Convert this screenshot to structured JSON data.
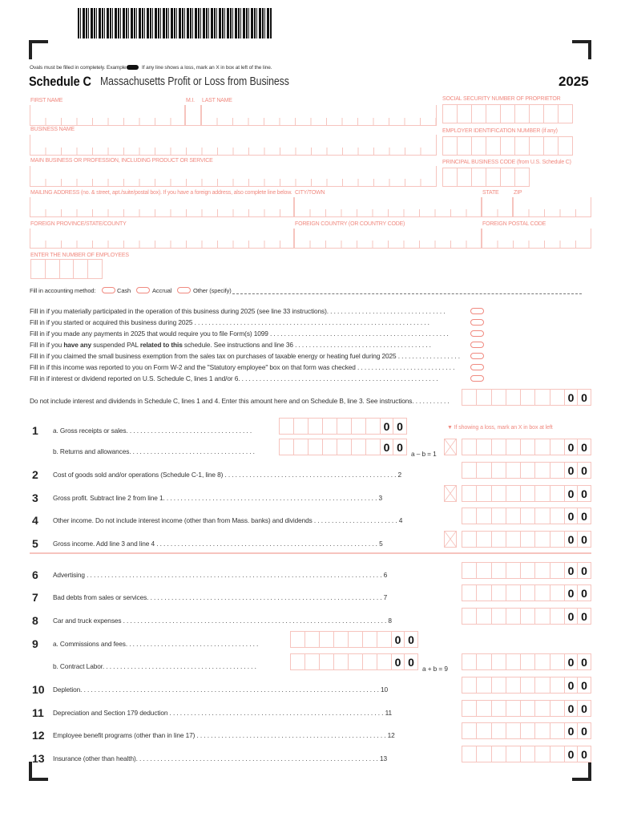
{
  "header": {
    "oval_note": "Ovals must be filled in completely. Example:",
    "loss_note": "If any line shows a loss, mark an X in box at left of the line.",
    "form_code": "Schedule C",
    "form_title": "Massachusetts Profit or Loss from Business",
    "year": "2025"
  },
  "fields": {
    "first_name": "FIRST NAME",
    "mi": "M.I.",
    "last_name": "LAST NAME",
    "ssn": "SOCIAL SECURITY NUMBER OF PROPRIETOR",
    "business_name": "BUSINESS NAME",
    "ein": "EMPLOYER IDENTIFICATION NUMBER (if any)",
    "main_business": "MAIN BUSINESS OR PROFESSION, INCLUDING PRODUCT OR SERVICE",
    "principal_code": "PRINCIPAL BUSINESS CODE (from U.S. Schedule C)",
    "mailing_address": "MAILING ADDRESS (no. & street, apt./suite/postal box). If you have a foreign address, also complete line below.",
    "city": "CITY/TOWN",
    "state": "STATE",
    "zip": "ZIP",
    "foreign_province": "FOREIGN PROVINCE/STATE/COUNTY",
    "foreign_country": "FOREIGN COUNTRY (OR COUNTRY CODE)",
    "foreign_postal": "FOREIGN POSTAL CODE",
    "employees": "ENTER THE NUMBER OF EMPLOYEES"
  },
  "accounting": {
    "label": "Fill in accounting method:",
    "cash": "Cash",
    "accrual": "Accrual",
    "other": "Other (specify)"
  },
  "fill_ins": [
    "Fill in if you materially participated in the operation of this business during 2025 (see line 33 instructions). . . . . . . . . . . . . . . . . . . . . . . . . . . . . . . . . .",
    "Fill in if you started or acquired this business during 2025 . . . . . . . . . . . . . . . . . . . . . . . . . . . . . . . . . . . . . . . . . . . . . . . . . . . . . . . . . . . . . . . . . . .",
    "Fill in if you made any payments in 2025 that would require you to file Form(s) 1099 . . . . . . . . . . . . . . . . . . . . . . . . . . . . . . . . . . . . . . . . . . . . . . . . . . .",
    [
      "Fill in if you ",
      "have any",
      " suspended PAL ",
      "related to this",
      " schedule. See instructions and line 36 . . . . . . . . . . . . . . . . . . . . . . . . . . . . . . . . . . . . . . ."
    ],
    "Fill in if you claimed the small business exemption from the sales tax on purchases of taxable energy or heating fuel during 2025 . . . . . . . . . . . . . . . . . .",
    "Fill in if this income was reported to you on Form W-2 and the \"Statutory employee\" box on that form was checked . . . . . . . . . . . . . . . . . . . . . . . . . . . .",
    "Fill in if interest or dividend reported on U.S. Schedule C, lines 1 and/or 6. . . . . . . . . . . . . . . . . . . . . . . . . . . . . . . . . . . . . . . . . . . . . . . . . . . . . . . . ."
  ],
  "interest_line": "Do not include interest and dividends in Schedule C, lines 1 and 4. Enter this amount here and on Schedule B, line 3. See instructions. . . . . . . . . . .",
  "loss_hint": "If showing a loss, mark an X in box at left",
  "cents": [
    "0",
    "0"
  ],
  "lines": [
    {
      "num": "1",
      "text": "a. Gross receipts or sales. . . . . . . . . . . . . . . . . . . . . . . . . . . . . . . . . . . .",
      "sub": true
    },
    {
      "num": "",
      "text": "b. Returns and allowances. . . . . . . . . . . . . . . . . . . . . . . . . . . . . . . . . . . .",
      "sub": true,
      "result": "a – b = 1",
      "xbox": true
    },
    {
      "num": "2",
      "text": "Cost of goods sold and/or operations (Schedule C-1, line 8) . . . . . . . . . . . . . . . . . . . . . . . . . . . . . . . . . . . . . . . . . . . . . . . . . 2"
    },
    {
      "num": "3",
      "text": "Gross profit. Subtract line 2 from line 1. . . . . . . . . . . . . . . . . . . . . . . . . . . . . . . . . . . . . . . . . . . . . . . . . . . . . . . . . . . . . 3",
      "xbox": true
    },
    {
      "num": "4",
      "text": "Other income. Do not include interest income (other than from Mass. banks) and dividends . . . . . . . . . . . . . . . . . . . . . . . . 4"
    },
    {
      "num": "5",
      "text": "Gross income. Add line 3 and line 4 . . . . . . . . . . . . . . . . . . . . . . . . . . . . . . . . . . . . . . . . . . . . . . . . . . . . . . . . . . . . . . . 5",
      "xbox": true
    },
    {
      "num": "6",
      "text": "Advertising . . . . . . . . . . . . . . . . . . . . . . . . . . . . . . . . . . . . . . . . . . . . . . . . . . . . . . . . . . . . . . . . . . . . . . . . . . . . . . . . . . . . 6"
    },
    {
      "num": "7",
      "text": "Bad debts from sales or services. . . . . . . . . . . . . . . . . . . . . . . . . . . . . . . . . . . . . . . . . . . . . . . . . . . . . . . . . . . . . . . . . . . 7"
    },
    {
      "num": "8",
      "text": "Car and truck expenses . . . . . . . . . . . . . . . . . . . . . . . . . . . . . . . . . . . . . . . . . . . . . . . . . . . . . . . . . . . . . . . . . . . . . . . . . . . 8"
    },
    {
      "num": "9",
      "text": "a. Commissions and fees. . . . . . . . . . . . . . . . . . . . . . . . . . . . . . . . . . . . . .",
      "sub9": true
    },
    {
      "num": "",
      "text": "b. Contract Labor. . . . . . . . . . . . . . . . . . . . . . . . . . . . . . . . . . . . . . . . . . . .",
      "sub9": true,
      "result": "a + b = 9"
    },
    {
      "num": "10",
      "text": "Depletion. . . . . . . . . . . . . . . . . . . . . . . . . . . . . . . . . . . . . . . . . . . . . . . . . . . . . . . . . . . . . . . . . . . . . . . . . . . . . . . . . . . . . 10"
    },
    {
      "num": "11",
      "text": "Depreciation and Section 179 deduction . . . . . . . . . . . . . . . . . . . . . . . . . . . . . . . . . . . . . . . . . . . . . . . . . . . . . . . . . . . . . 11"
    },
    {
      "num": "12",
      "text": "Employee benefit programs (other than in line 17) . . . . . . . . . . . . . . . . . . . . . . . . . . . . . . . . . . . . . . . . . . . . . . . . . . . . . . 12"
    },
    {
      "num": "13",
      "text": "Insurance (other than health). . . . . . . . . . . . . . . . . . . . . . . . . . . . . . . . . . . . . . . . . . . . . . . . . . . . . . . . . . . . . . . . . . . . . 13"
    }
  ]
}
